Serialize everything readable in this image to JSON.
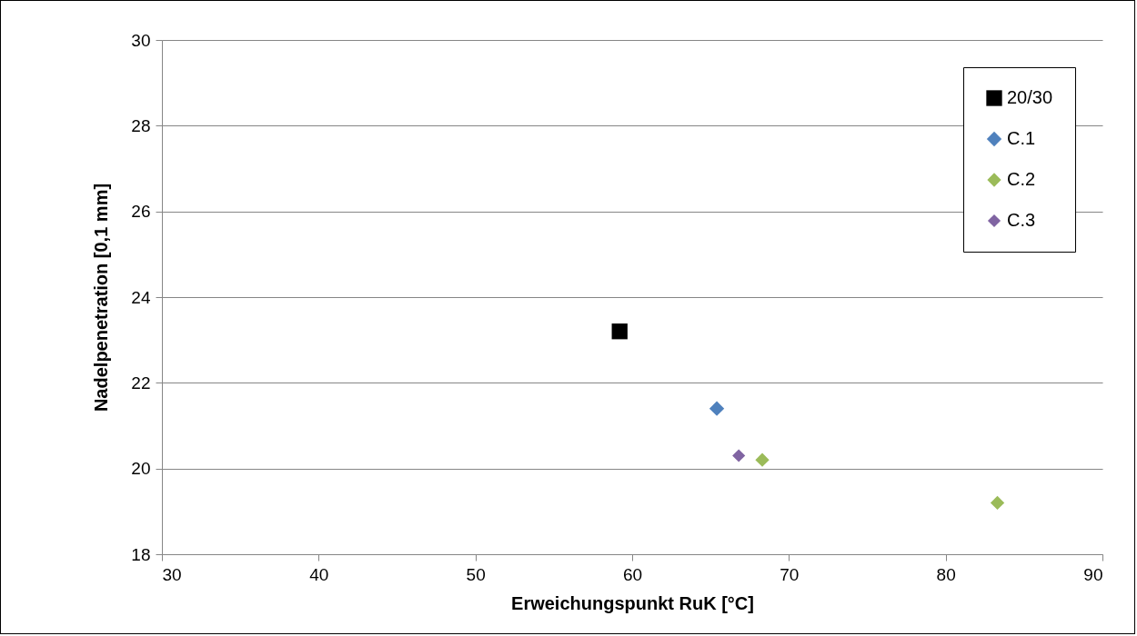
{
  "chart_data": {
    "type": "scatter",
    "xlabel": "Erweichungspunkt RuK [°C]",
    "ylabel": "Nadelpenetration [0,1 mm]",
    "xlim": [
      30,
      90
    ],
    "xticks": [
      30,
      40,
      50,
      60,
      70,
      80,
      90
    ],
    "ylim": [
      18,
      30
    ],
    "yticks": [
      18,
      20,
      22,
      24,
      26,
      28,
      30
    ],
    "grid": "y",
    "legend": "top right",
    "series": [
      {
        "name": "20/30",
        "color": "#000000",
        "marker": "square",
        "x": [
          59.2
        ],
        "values": [
          23.2
        ]
      },
      {
        "name": "C.1",
        "color": "#4f81bd",
        "marker": "diamond",
        "x": [
          65.4
        ],
        "values": [
          21.4
        ]
      },
      {
        "name": "C.2",
        "color": "#9bbb59",
        "marker": "diamond",
        "x": [
          68.3,
          83.3
        ],
        "values": [
          20.2,
          19.2
        ]
      },
      {
        "name": "C.3",
        "color": "#8064a2",
        "marker": "diamond",
        "x": [
          66.8
        ],
        "values": [
          20.3
        ]
      }
    ]
  }
}
